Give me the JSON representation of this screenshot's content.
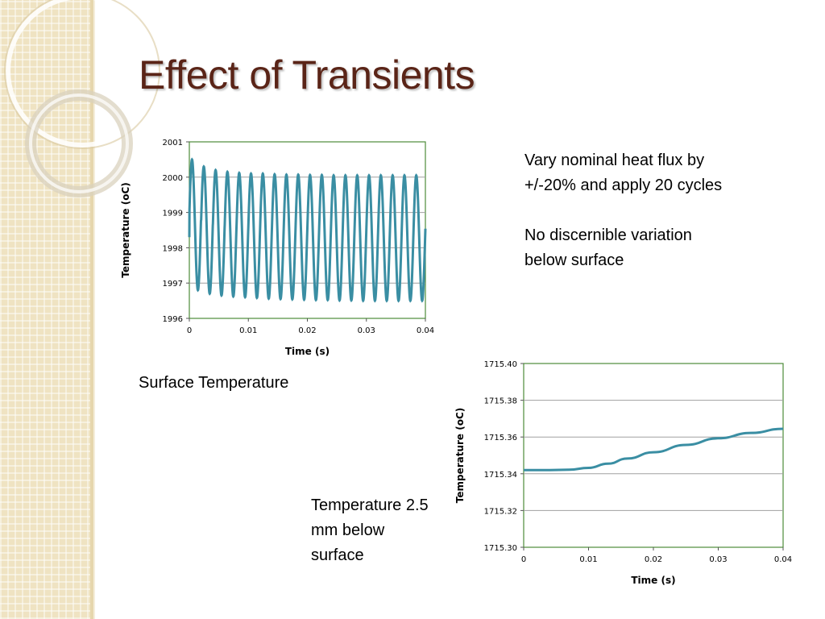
{
  "slide": {
    "title": "Effect of Transients",
    "notes": [
      "Vary nominal heat flux by +/-20% and apply 20 cycles",
      "No discernible variation below surface"
    ],
    "captions": {
      "surface": "Surface Temperature",
      "below": "Temperature 2.5 mm below surface"
    }
  },
  "colors": {
    "title": "#5a2417",
    "series": "#3a8ea3",
    "frame": "#4e8b3a",
    "grid": "#a0a0a0",
    "sidebar": "#efe3c2"
  },
  "chart_data": [
    {
      "type": "line",
      "xlabel": "Time (s)",
      "ylabel": "Temperature (oC)",
      "xlim": [
        0,
        0.04
      ],
      "ylim": [
        1996,
        2001
      ],
      "xticks": [
        "0",
        "0.01",
        "0.02",
        "0.03",
        "0.04"
      ],
      "yticks": [
        "1996",
        "1997",
        "1998",
        "1999",
        "2000",
        "2001"
      ],
      "grid": "horizontal",
      "series": [
        {
          "cycles": 20,
          "t_start": 0,
          "t_end": 0.04,
          "start_value": 1998.3,
          "peaks": [
            2000.5,
            2000.3,
            2000.2,
            2000.15,
            2000.12,
            2000.1,
            2000.1,
            2000.08,
            2000.07,
            2000.07,
            2000.06,
            2000.06,
            2000.05,
            2000.05,
            2000.05,
            2000.05,
            2000.05,
            2000.05,
            2000.05,
            2000.05
          ],
          "troughs": [
            1996.8,
            1996.7,
            1996.65,
            1996.62,
            1996.6,
            1996.58,
            1996.56,
            1996.55,
            1996.54,
            1996.53,
            1996.52,
            1996.52,
            1996.51,
            1996.51,
            1996.5,
            1996.5,
            1996.5,
            1996.5,
            1996.5,
            1996.5
          ]
        }
      ]
    },
    {
      "type": "line",
      "xlabel": "Time (s)",
      "ylabel": "Temperature (oC)",
      "xlim": [
        0,
        0.04
      ],
      "ylim": [
        1715.3,
        1715.4
      ],
      "xticks": [
        "0",
        "0.01",
        "0.02",
        "0.03",
        "0.04"
      ],
      "yticks": [
        "1715.30",
        "1715.32",
        "1715.34",
        "1715.36",
        "1715.38",
        "1715.40"
      ],
      "grid": "horizontal",
      "series": [
        {
          "x": [
            0,
            0.004,
            0.007,
            0.01,
            0.013,
            0.016,
            0.02,
            0.025,
            0.03,
            0.035,
            0.04
          ],
          "y": [
            1715.342,
            1715.342,
            1715.3422,
            1715.3432,
            1715.3455,
            1715.3483,
            1715.3517,
            1715.3557,
            1715.3593,
            1715.3622,
            1715.3645
          ]
        }
      ]
    }
  ]
}
